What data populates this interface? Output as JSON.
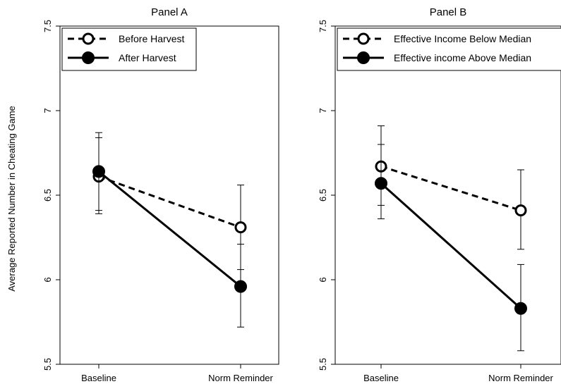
{
  "figure": {
    "ylabel": "Average Reported Number in Cheating Game"
  },
  "chart_data": [
    {
      "type": "line",
      "title": "Panel A",
      "categories": [
        "Baseline",
        "Norm Reminder"
      ],
      "ylabel": "Average Reported Number in Cheating Game",
      "ylim": [
        5.5,
        7.5
      ],
      "yticks": [
        "5.5",
        "6",
        "6.5",
        "7",
        "7.5"
      ],
      "legend_position": "top-left",
      "series": [
        {
          "name": "Before Harvest",
          "style": "dashed",
          "marker": "open-circle",
          "values": [
            6.61,
            6.31
          ],
          "err_low": [
            6.39,
            6.06
          ],
          "err_high": [
            6.84,
            6.56
          ]
        },
        {
          "name": "After Harvest",
          "style": "solid",
          "marker": "filled-circle",
          "values": [
            6.64,
            5.96
          ],
          "err_low": [
            6.41,
            5.72
          ],
          "err_high": [
            6.87,
            6.21
          ]
        }
      ]
    },
    {
      "type": "line",
      "title": "Panel B",
      "categories": [
        "Baseline",
        "Norm Reminder"
      ],
      "ylim": [
        5.5,
        7.5
      ],
      "yticks": [
        "5.5",
        "6",
        "6.5",
        "7",
        "7.5"
      ],
      "legend_position": "top-left",
      "series": [
        {
          "name": "Effective Income Below Median",
          "style": "dashed",
          "marker": "open-circle",
          "values": [
            6.67,
            6.41
          ],
          "err_low": [
            6.44,
            6.18
          ],
          "err_high": [
            6.91,
            6.65
          ]
        },
        {
          "name": "Effective income Above Median",
          "style": "solid",
          "marker": "filled-circle",
          "values": [
            6.57,
            5.83
          ],
          "err_low": [
            6.36,
            5.58
          ],
          "err_high": [
            6.8,
            6.09
          ]
        }
      ]
    }
  ]
}
